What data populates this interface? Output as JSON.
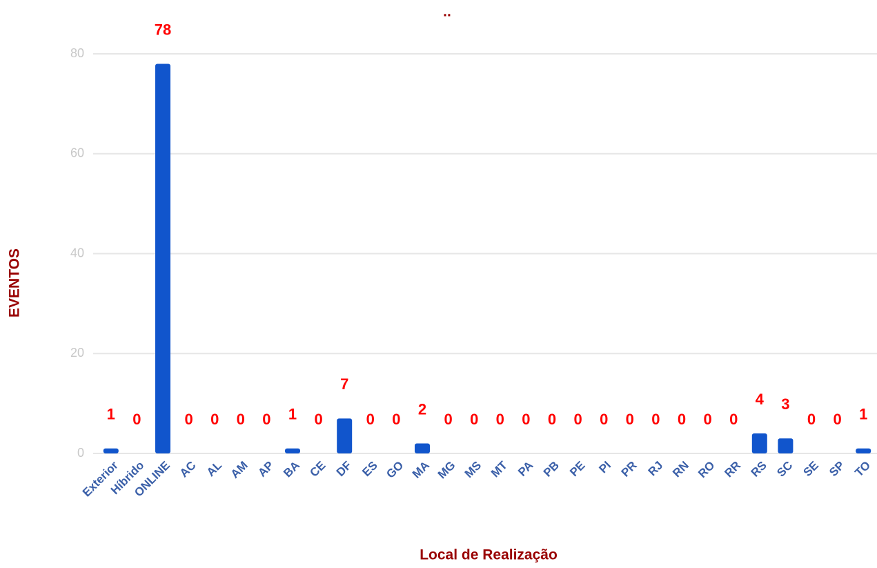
{
  "chart_data": {
    "type": "bar",
    "title": "..",
    "x_label": "Local de Realização",
    "y_label": "EVENTOS",
    "categories": [
      "Exterior",
      "Híbrido",
      "ONLINE",
      "AC",
      "AL",
      "AM",
      "AP",
      "BA",
      "CE",
      "DF",
      "ES",
      "GO",
      "MA",
      "MG",
      "MS",
      "MT",
      "PA",
      "PB",
      "PE",
      "PI",
      "PR",
      "RJ",
      "RN",
      "RO",
      "RR",
      "RS",
      "SC",
      "SE",
      "SP",
      "TO"
    ],
    "values": [
      1,
      0,
      78,
      0,
      0,
      0,
      0,
      1,
      0,
      7,
      0,
      0,
      2,
      0,
      0,
      0,
      0,
      0,
      0,
      0,
      0,
      0,
      0,
      0,
      0,
      4,
      3,
      0,
      0,
      1
    ],
    "color": "#1155cc",
    "ylim": [
      0,
      80
    ],
    "yticks": [
      0,
      20,
      40,
      60,
      80
    ],
    "grid": true
  }
}
